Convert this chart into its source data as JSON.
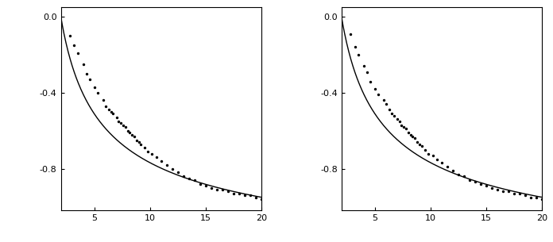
{
  "xlim": [
    2,
    20
  ],
  "ylim": [
    -1.02,
    0.05
  ],
  "xticks": [
    5,
    10,
    15,
    20
  ],
  "yticks": [
    0.0,
    -0.4,
    -0.8
  ],
  "yticklabels": [
    "0.0",
    "-0.4",
    "-0.8"
  ],
  "curve_color": "#000000",
  "dot_color": "#000000",
  "background_color": "#ffffff",
  "figsize": [
    6.96,
    3.05
  ],
  "dpi": 100,
  "curve_a": -0.41,
  "curve_b": 0.58,
  "scatter_x1": [
    2.8,
    3.2,
    3.5,
    4.0,
    4.3,
    4.6,
    5.0,
    5.3,
    5.8,
    6.0,
    6.3,
    6.5,
    6.7,
    7.0,
    7.2,
    7.4,
    7.6,
    7.8,
    8.0,
    8.2,
    8.4,
    8.6,
    8.8,
    9.0,
    9.2,
    9.5,
    9.8,
    10.2,
    10.6,
    11.0,
    11.5,
    12.0,
    12.5,
    13.0,
    13.5,
    14.0,
    14.5,
    15.0,
    15.5,
    16.0,
    16.5,
    17.0,
    17.5,
    18.0,
    18.5,
    19.0,
    19.5,
    20.0
  ],
  "scatter_y1": [
    -0.1,
    -0.15,
    -0.19,
    -0.25,
    -0.3,
    -0.33,
    -0.37,
    -0.4,
    -0.44,
    -0.47,
    -0.49,
    -0.5,
    -0.51,
    -0.53,
    -0.55,
    -0.56,
    -0.57,
    -0.58,
    -0.6,
    -0.61,
    -0.62,
    -0.63,
    -0.65,
    -0.66,
    -0.67,
    -0.69,
    -0.71,
    -0.72,
    -0.74,
    -0.76,
    -0.78,
    -0.8,
    -0.82,
    -0.84,
    -0.85,
    -0.86,
    -0.88,
    -0.89,
    -0.9,
    -0.91,
    -0.91,
    -0.92,
    -0.93,
    -0.93,
    -0.94,
    -0.94,
    -0.95,
    -0.96
  ],
  "scatter_x2": [
    2.8,
    3.2,
    3.5,
    4.0,
    4.3,
    4.6,
    5.0,
    5.3,
    5.8,
    6.0,
    6.3,
    6.5,
    6.7,
    7.0,
    7.2,
    7.4,
    7.6,
    7.8,
    8.0,
    8.2,
    8.4,
    8.6,
    8.8,
    9.0,
    9.2,
    9.5,
    9.8,
    10.2,
    10.6,
    11.0,
    11.5,
    12.0,
    12.5,
    13.0,
    13.5,
    14.0,
    14.5,
    15.0,
    15.5,
    16.0,
    16.5,
    17.0,
    17.5,
    18.0,
    18.5,
    19.0,
    19.5,
    20.0
  ],
  "scatter_y2": [
    -0.09,
    -0.16,
    -0.2,
    -0.26,
    -0.29,
    -0.34,
    -0.38,
    -0.41,
    -0.44,
    -0.46,
    -0.49,
    -0.51,
    -0.52,
    -0.54,
    -0.55,
    -0.57,
    -0.58,
    -0.59,
    -0.61,
    -0.62,
    -0.63,
    -0.64,
    -0.66,
    -0.67,
    -0.68,
    -0.7,
    -0.72,
    -0.73,
    -0.75,
    -0.77,
    -0.79,
    -0.81,
    -0.83,
    -0.84,
    -0.86,
    -0.87,
    -0.88,
    -0.89,
    -0.9,
    -0.91,
    -0.92,
    -0.92,
    -0.93,
    -0.93,
    -0.94,
    -0.95,
    -0.95,
    -0.96
  ]
}
